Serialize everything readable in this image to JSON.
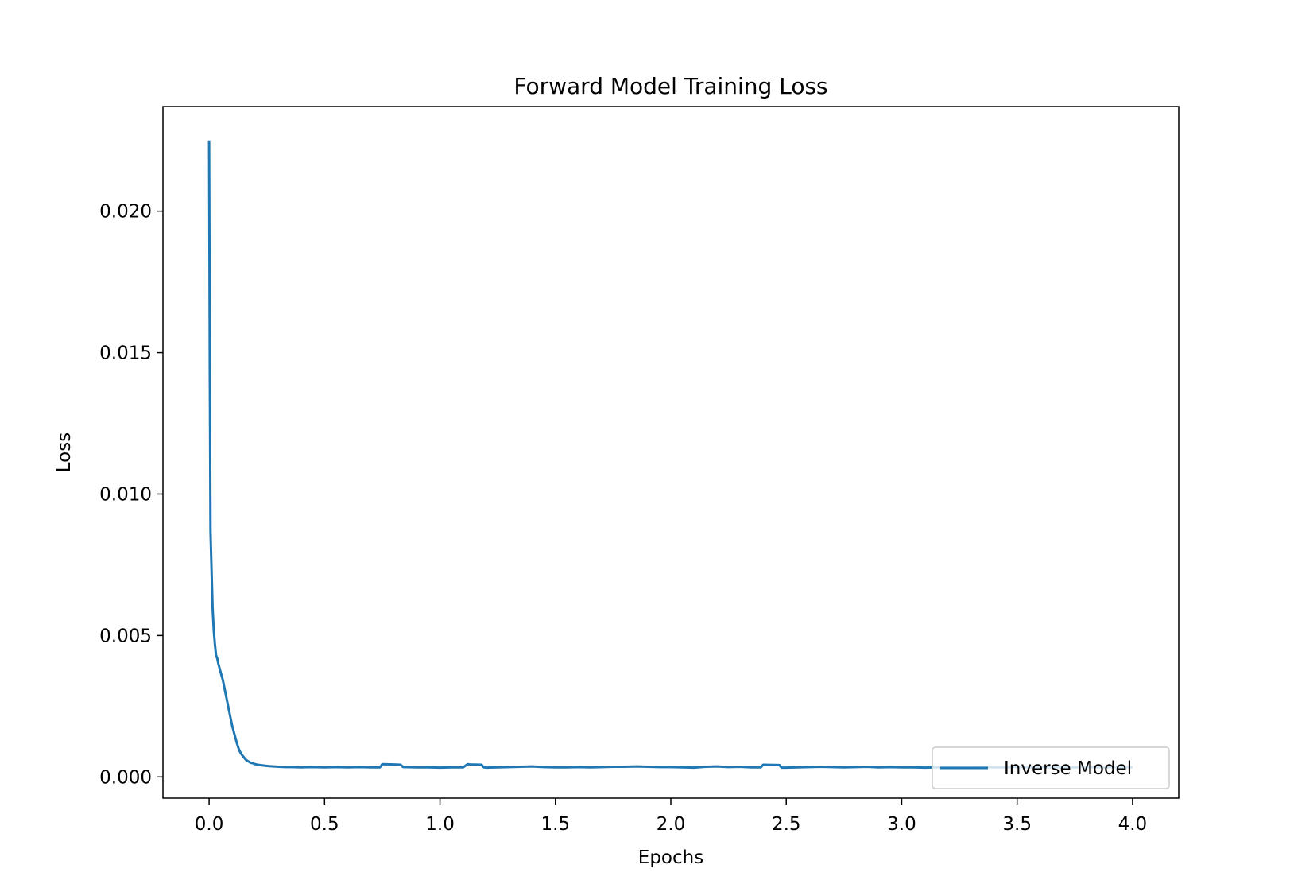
{
  "chart_data": {
    "type": "line",
    "title": "Forward Model Training Loss",
    "xlabel": "Epochs",
    "ylabel": "Loss",
    "xlim": [
      -0.2,
      4.2
    ],
    "ylim": [
      -0.00075,
      0.0237
    ],
    "xticks": [
      0.0,
      0.5,
      1.0,
      1.5,
      2.0,
      2.5,
      3.0,
      3.5,
      4.0
    ],
    "xtick_labels": [
      "0.0",
      "0.5",
      "1.0",
      "1.5",
      "2.0",
      "2.5",
      "3.0",
      "3.5",
      "4.0"
    ],
    "yticks": [
      0.0,
      0.005,
      0.01,
      0.015,
      0.02
    ],
    "ytick_labels": [
      "0.000",
      "0.005",
      "0.010",
      "0.015",
      "0.020"
    ],
    "grid": false,
    "legend_position": "lower-right",
    "series": [
      {
        "name": "Inverse Model",
        "color": "#1f77b4",
        "x": [
          0.0,
          0.003,
          0.006,
          0.01,
          0.015,
          0.02,
          0.025,
          0.03,
          0.035,
          0.04,
          0.05,
          0.06,
          0.07,
          0.08,
          0.09,
          0.1,
          0.11,
          0.12,
          0.13,
          0.14,
          0.15,
          0.16,
          0.17,
          0.18,
          0.19,
          0.2,
          0.21,
          0.22,
          0.24,
          0.26,
          0.28,
          0.3,
          0.33,
          0.36,
          0.4,
          0.45,
          0.5,
          0.55,
          0.6,
          0.65,
          0.7,
          0.74,
          0.75,
          0.8,
          0.83,
          0.84,
          0.9,
          0.95,
          1.0,
          1.05,
          1.1,
          1.12,
          1.13,
          1.18,
          1.19,
          1.2,
          1.25,
          1.3,
          1.35,
          1.4,
          1.45,
          1.5,
          1.55,
          1.6,
          1.65,
          1.7,
          1.75,
          1.8,
          1.85,
          1.9,
          1.95,
          2.0,
          2.05,
          2.1,
          2.15,
          2.2,
          2.25,
          2.3,
          2.35,
          2.39,
          2.4,
          2.47,
          2.48,
          2.5,
          2.55,
          2.6,
          2.65,
          2.7,
          2.75,
          2.8,
          2.85,
          2.9,
          2.95,
          3.0,
          3.05,
          3.1,
          3.15,
          3.2,
          3.25,
          3.3,
          3.35,
          3.4,
          3.45,
          3.5,
          3.55,
          3.6,
          3.65,
          3.7,
          3.75,
          3.8,
          3.85,
          3.9,
          3.95,
          4.0
        ],
        "values": [
          0.0225,
          0.0145,
          0.0087,
          0.0075,
          0.006,
          0.0052,
          0.0047,
          0.0043,
          0.0042,
          0.004,
          0.0037,
          0.0034,
          0.003,
          0.0026,
          0.0022,
          0.0018,
          0.0015,
          0.0012,
          0.00095,
          0.0008,
          0.0007,
          0.0006,
          0.00055,
          0.0005,
          0.00048,
          0.00045,
          0.00043,
          0.00042,
          0.0004,
          0.00038,
          0.00037,
          0.00036,
          0.00035,
          0.00035,
          0.00034,
          0.00035,
          0.00034,
          0.00035,
          0.00034,
          0.00035,
          0.00034,
          0.00034,
          0.00045,
          0.00044,
          0.00043,
          0.00035,
          0.00034,
          0.00034,
          0.00033,
          0.00034,
          0.00034,
          0.00045,
          0.00044,
          0.00043,
          0.00034,
          0.00033,
          0.00034,
          0.00035,
          0.00036,
          0.00037,
          0.00035,
          0.00034,
          0.00034,
          0.00035,
          0.00034,
          0.00035,
          0.00036,
          0.00036,
          0.00037,
          0.00036,
          0.00035,
          0.00035,
          0.00034,
          0.00033,
          0.00036,
          0.00037,
          0.00035,
          0.00036,
          0.00034,
          0.00034,
          0.00043,
          0.00042,
          0.00033,
          0.00033,
          0.00034,
          0.00035,
          0.00036,
          0.00035,
          0.00034,
          0.00035,
          0.00036,
          0.00034,
          0.00035,
          0.00034,
          0.00034,
          0.00033,
          0.00034,
          0.00035,
          0.00034,
          0.00034,
          0.00035,
          0.00034,
          0.00034,
          0.00035,
          0.00034,
          0.00034,
          0.00035,
          0.00034,
          0.00034,
          0.00035,
          0.00034,
          0.00034,
          0.00035,
          0.00034
        ]
      }
    ]
  }
}
